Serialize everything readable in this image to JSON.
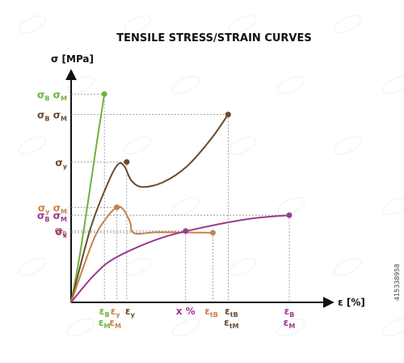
{
  "colors": {
    "green": "#6db33f",
    "dark_brown": "#6b4a2e",
    "light_brown": "#c8804a",
    "purple": "#9b3a8e",
    "axis": "#111111",
    "guide": "#8a8a8a"
  },
  "chart_data": {
    "type": "line",
    "title": "TENSILE STRESS/STRAIN CURVES",
    "ylabel": "σ [MPa]",
    "xlabel": "ε [%]",
    "grid": false,
    "legend": "none",
    "watermark_id": "415338958",
    "series": [
      {
        "color_key": "green",
        "points": [
          [
            0,
            0
          ],
          [
            8,
            42
          ],
          [
            16,
            92
          ],
          [
            24,
            144
          ],
          [
            30.5,
            184
          ]
        ],
        "end_point": [
          30.5,
          184
        ],
        "y_labels": [
          [
            "σ",
            "B"
          ],
          [
            "σ",
            "M"
          ]
        ],
        "x_labels": [
          [
            "ε",
            "B"
          ],
          [
            "ε",
            "M"
          ]
        ]
      },
      {
        "color_key": "dark_brown",
        "points": [
          [
            0,
            0
          ],
          [
            18,
            66
          ],
          [
            34,
            106
          ],
          [
            43,
            122
          ],
          [
            49,
            120
          ],
          [
            55,
            108
          ],
          [
            65,
            102
          ],
          [
            84,
            106
          ],
          [
            106,
            120
          ],
          [
            128,
            144
          ],
          [
            144,
            166
          ]
        ],
        "end_point": [
          144,
          166
        ],
        "marker_point": [
          51,
          124
        ],
        "y_labels": [
          [
            [
              "σ",
              "B"
            ],
            [
              "σ",
              "M"
            ]
          ],
          [
            [
              "σ",
              "y"
            ]
          ]
        ],
        "x_labels": [
          [
            [
              "ε",
              "y"
            ]
          ],
          [
            [
              "ε",
              "tB"
            ],
            [
              "ε",
              "tM"
            ]
          ]
        ]
      },
      {
        "color_key": "light_brown",
        "points": [
          [
            0,
            0
          ],
          [
            20,
            54
          ],
          [
            32,
            74
          ],
          [
            42,
            84
          ],
          [
            48,
            82
          ],
          [
            54,
            71
          ],
          [
            58,
            61
          ],
          [
            80,
            62
          ],
          [
            130,
            61.5
          ]
        ],
        "end_point": [
          130,
          61.5
        ],
        "marker_point": [
          42,
          84
        ],
        "y_labels": [
          [
            [
              "σ",
              "y"
            ],
            [
              "σ",
              "M"
            ]
          ],
          [
            [
              "σ",
              "B"
            ]
          ]
        ],
        "x_labels": [
          [
            [
              "ε",
              "y"
            ],
            [
              "ε",
              "M"
            ]
          ],
          [
            [
              "ε",
              "tB"
            ]
          ]
        ]
      },
      {
        "color_key": "purple",
        "points": [
          [
            0,
            0
          ],
          [
            20,
            23
          ],
          [
            40,
            39
          ],
          [
            80,
            56
          ],
          [
            120,
            66
          ],
          [
            165,
            74
          ],
          [
            200,
            77
          ]
        ],
        "end_point": [
          200,
          77
        ],
        "marker_point": [
          105,
          63
        ],
        "y_labels": [
          [
            [
              "σ",
              "B"
            ],
            [
              "σ",
              "M"
            ]
          ],
          [
            [
              "σ",
              "x"
            ]
          ]
        ],
        "x_labels": [
          [
            [
              "x %"
            ]
          ],
          [
            [
              "ε",
              "B"
            ],
            [
              "ε",
              "M"
            ]
          ]
        ]
      }
    ]
  }
}
